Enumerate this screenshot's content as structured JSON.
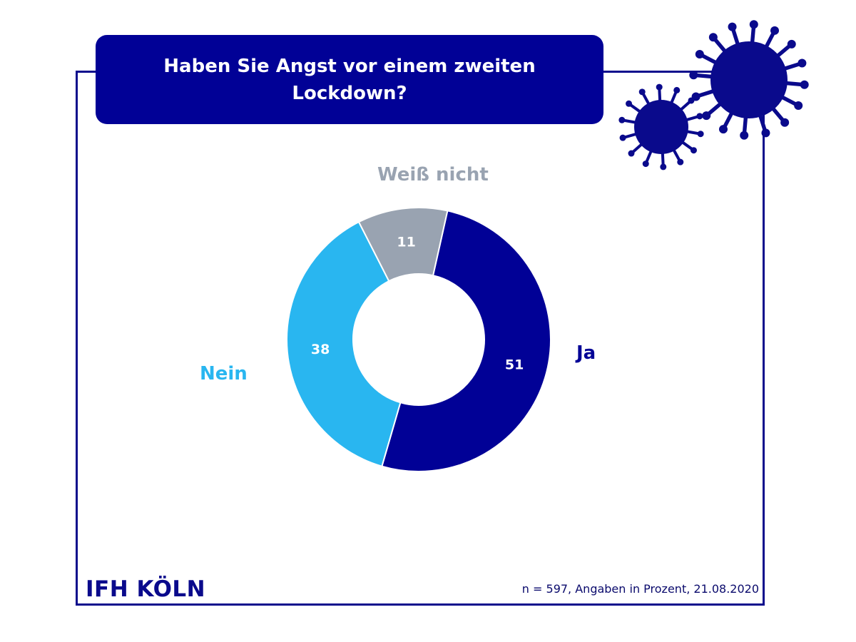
{
  "title": "Haben Sie Angst vor einem zweiten Lockdown?",
  "brand": "IFH KÖLN",
  "source_note": "n = 597, Angaben in Prozent, 21.08.2020",
  "chart_data": {
    "type": "pie",
    "variant": "donut",
    "title": "Haben Sie Angst vor einem zweiten Lockdown?",
    "unit": "Prozent",
    "categories": [
      "Ja",
      "Nein",
      "Weiß nicht"
    ],
    "values": [
      51,
      38,
      11
    ],
    "colors": [
      "#010196",
      "#29b6f0",
      "#99a3b1"
    ],
    "label_colors": [
      "#010196",
      "#29b6f0",
      "#99a3b1"
    ]
  },
  "decorations": {
    "virus_color": "#0a0a8c",
    "icons": [
      "virus-icon-large",
      "virus-icon-small"
    ]
  }
}
